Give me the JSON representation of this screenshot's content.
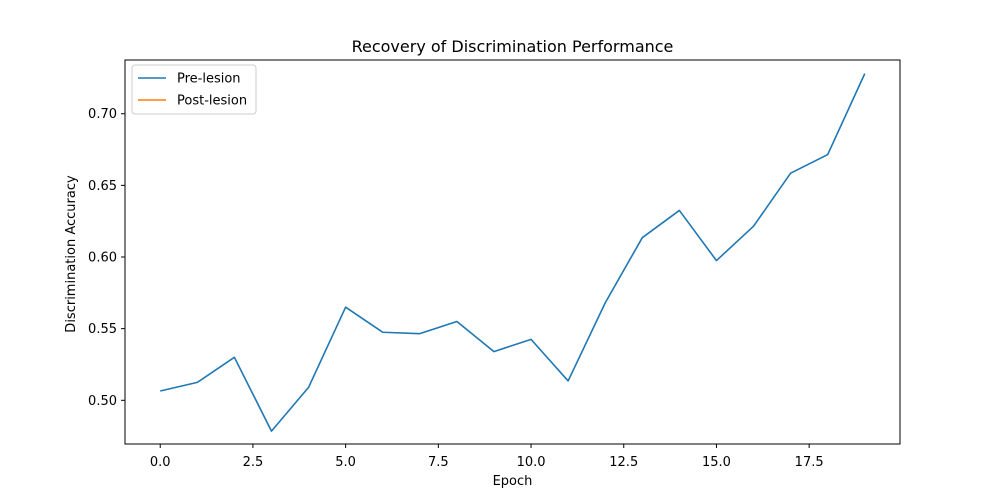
{
  "chart_data": {
    "type": "line",
    "title": "Recovery of Discrimination Performance",
    "xlabel": "Epoch",
    "ylabel": "Discrimination Accuracy",
    "xlim": [
      -0.95,
      19.95
    ],
    "ylim": [
      0.4695,
      0.7375
    ],
    "xticks": [
      0.0,
      2.5,
      5.0,
      7.5,
      10.0,
      12.5,
      15.0,
      17.5
    ],
    "xtick_labels": [
      "0.0",
      "2.5",
      "5.0",
      "7.5",
      "10.0",
      "12.5",
      "15.0",
      "17.5"
    ],
    "yticks": [
      0.5,
      0.55,
      0.6,
      0.65,
      0.7
    ],
    "ytick_labels": [
      "0.50",
      "0.55",
      "0.60",
      "0.65",
      "0.70"
    ],
    "grid": false,
    "legend_position": "top-left",
    "series": [
      {
        "name": "Pre-lesion",
        "color": "#1f77b4",
        "x": [
          0,
          1,
          2,
          3,
          4,
          5,
          6,
          7,
          8,
          9,
          10,
          11,
          12,
          13,
          14,
          15,
          16,
          17,
          18,
          19
        ],
        "values": [
          0.5065,
          0.5125,
          0.53,
          0.4785,
          0.509,
          0.565,
          0.5475,
          0.5465,
          0.555,
          0.534,
          0.5425,
          0.5135,
          0.568,
          0.6135,
          0.6325,
          0.5975,
          0.6215,
          0.6585,
          0.6715,
          0.728
        ]
      },
      {
        "name": "Post-lesion",
        "color": "#ff7f0e",
        "x": [],
        "values": []
      }
    ]
  }
}
